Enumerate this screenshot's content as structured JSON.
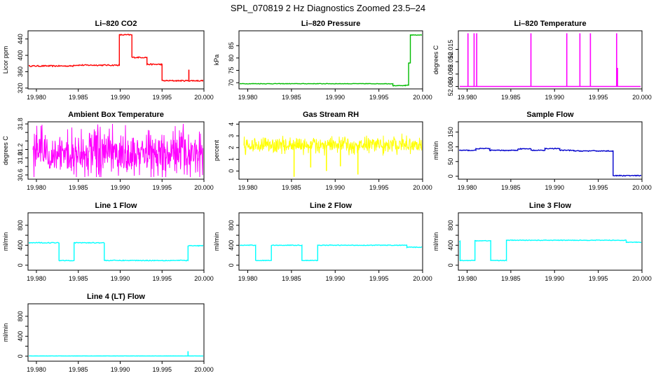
{
  "title": "SPL_070819  2 Hz Diagnostics Zoomed 23.5–24",
  "chart_data": [
    {
      "type": "line",
      "title": "Li–820 CO2",
      "ylabel": "Licor ppm",
      "color": "#ff0000",
      "xlim": [
        19.979,
        20.0
      ],
      "ylim": [
        318,
        460
      ],
      "xticks": [
        19.98,
        19.985,
        19.99,
        19.995,
        20.0
      ],
      "xtick_labels": [
        "19.980",
        "19.985",
        "19.990",
        "19.995",
        "20.000"
      ],
      "yticks": [
        320,
        360,
        400,
        440
      ],
      "ytick_labels": [
        "320",
        "360",
        "400",
        "440"
      ],
      "series": [
        {
          "kind": "step",
          "noise": 1.5,
          "x": [
            19.979,
            19.9844,
            19.9899,
            19.9914,
            19.9932,
            19.995,
            20.0
          ],
          "y": [
            374,
            376,
            450,
            395,
            378,
            338,
            338
          ]
        }
      ],
      "spikes": [
        {
          "x": 19.9982,
          "y": 365
        }
      ]
    },
    {
      "type": "line",
      "title": "Li–820 Pressure",
      "ylabel": "kPa",
      "color": "#00bb00",
      "xlim": [
        19.979,
        20.0
      ],
      "ylim": [
        67.5,
        91
      ],
      "xticks": [
        19.98,
        19.985,
        19.99,
        19.995,
        20.0
      ],
      "xtick_labels": [
        "19.980",
        "19.985",
        "19.990",
        "19.995",
        "20.000"
      ],
      "yticks": [
        70,
        75,
        80,
        85
      ],
      "ytick_labels": [
        "70",
        "75",
        "80",
        "85"
      ],
      "series": [
        {
          "kind": "step",
          "noise": 0.1,
          "x": [
            19.979,
            19.9966,
            19.998,
            19.9984,
            19.9986,
            20.0
          ],
          "y": [
            69.6,
            68.8,
            69.0,
            78.0,
            89.3,
            89.3
          ]
        }
      ]
    },
    {
      "type": "line",
      "title": "Li–820 Temperature",
      "ylabel": "degrees C",
      "color": "#ff00ff",
      "xlim": [
        19.979,
        20.0
      ],
      "ylim": [
        51.999,
        52.0225
      ],
      "xticks": [
        19.98,
        19.985,
        19.99,
        19.995,
        20.0
      ],
      "xtick_labels": [
        "19.980",
        "19.985",
        "19.990",
        "19.995",
        "20.000"
      ],
      "yticks": [
        52.0,
        52.005,
        52.01,
        52.015
      ],
      "ytick_labels": [
        "52.000",
        "52.005",
        "52.010",
        "52.015"
      ],
      "series": [
        {
          "kind": "flat",
          "y": 52.0
        }
      ],
      "spikes": [
        {
          "x": 19.9801,
          "y": 52.0215
        },
        {
          "x": 19.9808,
          "y": 52.0215
        },
        {
          "x": 19.9811,
          "y": 52.0215
        },
        {
          "x": 19.9873,
          "y": 52.0215
        },
        {
          "x": 19.9914,
          "y": 52.0215
        },
        {
          "x": 19.9929,
          "y": 52.0215
        },
        {
          "x": 19.9941,
          "y": 52.0215
        },
        {
          "x": 19.9971,
          "y": 52.0215
        },
        {
          "x": 19.9972,
          "y": 52.0075
        }
      ]
    },
    {
      "type": "line",
      "title": "Ambient Box Temperature",
      "ylabel": "degrees C",
      "color": "#ff00ff",
      "xlim": [
        19.979,
        20.0
      ],
      "ylim": [
        30.5,
        31.85
      ],
      "xticks": [
        19.98,
        19.985,
        19.99,
        19.995,
        20.0
      ],
      "xtick_labels": [
        "19.980",
        "19.985",
        "19.990",
        "19.995",
        "20.000"
      ],
      "yticks": [
        30.6,
        30.8,
        31.0,
        31.2,
        31.4,
        31.6,
        31.8
      ],
      "ytick_labels": [
        "30.6",
        "",
        "31.0",
        "31.2",
        "",
        "",
        "31.8"
      ],
      "series": [
        {
          "kind": "noise",
          "center": 31.1,
          "spread": 0.35,
          "min": 30.55,
          "max": 31.8
        }
      ]
    },
    {
      "type": "line",
      "title": "Gas Stream RH",
      "ylabel": "percent",
      "color": "#ffff00",
      "xlim": [
        19.979,
        20.0
      ],
      "ylim": [
        -0.7,
        4.2
      ],
      "xticks": [
        19.98,
        19.985,
        19.99,
        19.995,
        20.0
      ],
      "xtick_labels": [
        "19.980",
        "19.985",
        "19.990",
        "19.995",
        "20.000"
      ],
      "yticks": [
        0,
        1,
        2,
        3,
        4
      ],
      "ytick_labels": [
        "0",
        "1",
        "2",
        "3",
        "4"
      ],
      "series": [
        {
          "kind": "noise",
          "center": 2.2,
          "spread": 0.45,
          "min": -0.5,
          "max": 3.9
        }
      ],
      "spikes": [
        {
          "x": 19.9853,
          "y": -0.5
        },
        {
          "x": 19.9872,
          "y": 0.3
        },
        {
          "x": 19.989,
          "y": 0.0
        },
        {
          "x": 19.9906,
          "y": 0.4
        },
        {
          "x": 19.9926,
          "y": -0.3
        }
      ]
    },
    {
      "type": "line",
      "title": "Sample Flow",
      "ylabel": "ml/min",
      "color": "#0000cc",
      "xlim": [
        19.979,
        20.0
      ],
      "ylim": [
        -10,
        185
      ],
      "xticks": [
        19.98,
        19.985,
        19.99,
        19.995,
        20.0
      ],
      "xtick_labels": [
        "19.980",
        "19.985",
        "19.990",
        "19.995",
        "20.000"
      ],
      "yticks": [
        0,
        50,
        100,
        150
      ],
      "ytick_labels": [
        "0",
        "50",
        "100",
        "150"
      ],
      "series": [
        {
          "kind": "step",
          "noise": 1.5,
          "x": [
            19.979,
            19.981,
            19.9826,
            19.9858,
            19.9873,
            19.9889,
            19.9906,
            19.9922,
            19.9948,
            19.9967,
            20.0
          ],
          "y": [
            88,
            94,
            88,
            93,
            88,
            94,
            88,
            86,
            86,
            2,
            2
          ]
        }
      ]
    },
    {
      "type": "line",
      "title": "Line 1 Flow",
      "ylabel": "ml/min",
      "color": "#00ffff",
      "xlim": [
        19.979,
        20.0
      ],
      "ylim": [
        -100,
        1050
      ],
      "xticks": [
        19.98,
        19.985,
        19.99,
        19.995,
        20.0
      ],
      "xtick_labels": [
        "19.980",
        "19.985",
        "19.990",
        "19.995",
        "20.000"
      ],
      "yticks": [
        0,
        200,
        400,
        600,
        800
      ],
      "ytick_labels": [
        "0",
        "",
        "400",
        "",
        "800"
      ],
      "series": [
        {
          "kind": "step",
          "noise": 8,
          "x": [
            19.9791,
            19.9827,
            19.9845,
            19.9881,
            19.9981,
            20.0
          ],
          "y": [
            450,
            95,
            450,
            95,
            390,
            390
          ]
        }
      ]
    },
    {
      "type": "line",
      "title": "Line 2 Flow",
      "ylabel": "ml/min",
      "color": "#00ffff",
      "xlim": [
        19.979,
        20.0
      ],
      "ylim": [
        -100,
        1050
      ],
      "xticks": [
        19.98,
        19.985,
        19.99,
        19.995,
        20.0
      ],
      "xtick_labels": [
        "19.980",
        "19.985",
        "19.990",
        "19.995",
        "20.000"
      ],
      "yticks": [
        0,
        200,
        400,
        600,
        800
      ],
      "ytick_labels": [
        "0",
        "",
        "400",
        "",
        "800"
      ],
      "series": [
        {
          "kind": "step",
          "noise": 6,
          "x": [
            19.9791,
            19.9809,
            19.9827,
            19.9862,
            19.988,
            19.9982,
            20.0
          ],
          "y": [
            400,
            95,
            400,
            95,
            400,
            360,
            360
          ]
        }
      ]
    },
    {
      "type": "line",
      "title": "Line 3 Flow",
      "ylabel": "ml/min",
      "color": "#00ffff",
      "xlim": [
        19.979,
        20.0
      ],
      "ylim": [
        -100,
        1050
      ],
      "xticks": [
        19.98,
        19.985,
        19.99,
        19.995,
        20.0
      ],
      "xtick_labels": [
        "19.980",
        "19.985",
        "19.990",
        "19.995",
        "20.000"
      ],
      "yticks": [
        0,
        200,
        400,
        600,
        800
      ],
      "ytick_labels": [
        "0",
        "",
        "400",
        "",
        "800"
      ],
      "series": [
        {
          "kind": "step",
          "noise": 6,
          "x": [
            19.9791,
            19.9792,
            19.9809,
            19.9827,
            19.9845,
            19.9982,
            20.0
          ],
          "y": [
            480,
            95,
            490,
            95,
            500,
            460,
            460
          ]
        }
      ]
    },
    {
      "type": "line",
      "title": "Line 4 (LT) Flow",
      "ylabel": "ml/min",
      "color": "#00ffff",
      "xlim": [
        19.979,
        20.0
      ],
      "ylim": [
        -100,
        1050
      ],
      "xticks": [
        19.98,
        19.985,
        19.99,
        19.995,
        20.0
      ],
      "xtick_labels": [
        "19.980",
        "19.985",
        "19.990",
        "19.995",
        "20.000"
      ],
      "yticks": [
        0,
        200,
        400,
        600,
        800
      ],
      "ytick_labels": [
        "0",
        "",
        "400",
        "",
        "800"
      ],
      "series": [
        {
          "kind": "step",
          "noise": 2,
          "x": [
            19.9791,
            20.0
          ],
          "y": [
            5,
            5
          ]
        }
      ],
      "spikes": [
        {
          "x": 19.9981,
          "y": 100
        }
      ]
    }
  ]
}
